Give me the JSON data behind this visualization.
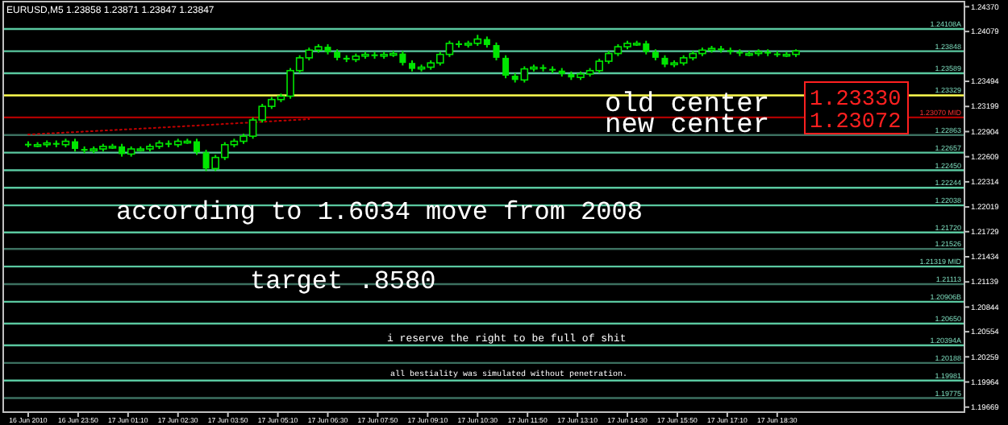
{
  "chart_data": {
    "type": "candlestick",
    "title": "EURUSD,M5  1.23858 1.23871 1.23847 1.23847",
    "color": "#00e600",
    "x": [
      "2010-06-16T22:30",
      "2010-06-16T22:45",
      "2010-06-16T23:00",
      "2010-06-16T23:15",
      "2010-06-16T23:30",
      "2010-06-16T23:45",
      "2010-06-17T00:00",
      "2010-06-17T00:15",
      "2010-06-17T00:30",
      "2010-06-17T00:45",
      "2010-06-17T01:00",
      "2010-06-17T01:15",
      "2010-06-17T01:30",
      "2010-06-17T01:45",
      "2010-06-17T02:00",
      "2010-06-17T02:15",
      "2010-06-17T02:30",
      "2010-06-17T02:45",
      "2010-06-17T03:00",
      "2010-06-17T03:15",
      "2010-06-17T03:30",
      "2010-06-17T03:45",
      "2010-06-17T04:00",
      "2010-06-17T04:15",
      "2010-06-17T04:30",
      "2010-06-17T04:45",
      "2010-06-17T05:00",
      "2010-06-17T05:15",
      "2010-06-17T05:30",
      "2010-06-17T05:45",
      "2010-06-17T06:00",
      "2010-06-17T06:15",
      "2010-06-17T06:30",
      "2010-06-17T06:45",
      "2010-06-17T07:00",
      "2010-06-17T07:15",
      "2010-06-17T07:30",
      "2010-06-17T07:45",
      "2010-06-17T08:00",
      "2010-06-17T08:15",
      "2010-06-17T08:30",
      "2010-06-17T08:45",
      "2010-06-17T09:00",
      "2010-06-17T09:15",
      "2010-06-17T09:30",
      "2010-06-17T09:45",
      "2010-06-17T10:00",
      "2010-06-17T10:15",
      "2010-06-17T10:30",
      "2010-06-17T10:45",
      "2010-06-17T11:00",
      "2010-06-17T11:15",
      "2010-06-17T11:30",
      "2010-06-17T11:45",
      "2010-06-17T12:00",
      "2010-06-17T12:15",
      "2010-06-17T12:30",
      "2010-06-17T12:45",
      "2010-06-17T13:00",
      "2010-06-17T13:15",
      "2010-06-17T13:30",
      "2010-06-17T13:45",
      "2010-06-17T14:00",
      "2010-06-17T14:15",
      "2010-06-17T14:30",
      "2010-06-17T14:45",
      "2010-06-17T15:00",
      "2010-06-17T15:15",
      "2010-06-17T15:30",
      "2010-06-17T15:45",
      "2010-06-17T16:00",
      "2010-06-17T16:15",
      "2010-06-17T16:30",
      "2010-06-17T16:45",
      "2010-06-17T17:00",
      "2010-06-17T17:15",
      "2010-06-17T17:30",
      "2010-06-17T17:45",
      "2010-06-17T18:00",
      "2010-06-17T18:15",
      "2010-06-17T18:30",
      "2010-06-17T18:45",
      "2010-06-17T19:00"
    ],
    "ohlc": [
      [
        1.2276,
        1.2279,
        1.2272,
        1.2275
      ],
      [
        1.2275,
        1.2278,
        1.2272,
        1.2275
      ],
      [
        1.2275,
        1.228,
        1.2272,
        1.2277
      ],
      [
        1.2277,
        1.228,
        1.2272,
        1.2275
      ],
      [
        1.2275,
        1.2282,
        1.2272,
        1.2279
      ],
      [
        1.2279,
        1.2282,
        1.2267,
        1.227
      ],
      [
        1.227,
        1.2273,
        1.2265,
        1.2268
      ],
      [
        1.2268,
        1.2273,
        1.2265,
        1.227
      ],
      [
        1.227,
        1.2276,
        1.2267,
        1.2273
      ],
      [
        1.2273,
        1.2276,
        1.227,
        1.2273
      ],
      [
        1.2273,
        1.2276,
        1.2261,
        1.2264
      ],
      [
        1.2264,
        1.2273,
        1.2261,
        1.227
      ],
      [
        1.227,
        1.2273,
        1.2267,
        1.227
      ],
      [
        1.227,
        1.2276,
        1.2267,
        1.2273
      ],
      [
        1.2273,
        1.228,
        1.227,
        1.2277
      ],
      [
        1.2277,
        1.228,
        1.2272,
        1.2275
      ],
      [
        1.2275,
        1.2282,
        1.2272,
        1.2279
      ],
      [
        1.2279,
        1.2282,
        1.2276,
        1.2279
      ],
      [
        1.2279,
        1.2282,
        1.2263,
        1.2266
      ],
      [
        1.2266,
        1.2269,
        1.2244,
        1.2247
      ],
      [
        1.2247,
        1.2263,
        1.2244,
        1.226
      ],
      [
        1.226,
        1.2278,
        1.2257,
        1.2275
      ],
      [
        1.2275,
        1.2282,
        1.2272,
        1.2279
      ],
      [
        1.2279,
        1.2288,
        1.2276,
        1.2285
      ],
      [
        1.2285,
        1.2307,
        1.2282,
        1.2304
      ],
      [
        1.2304,
        1.2323,
        1.2301,
        1.232
      ],
      [
        1.232,
        1.2331,
        1.2317,
        1.2328
      ],
      [
        1.2328,
        1.2335,
        1.2325,
        1.2332
      ],
      [
        1.2332,
        1.2365,
        1.2329,
        1.2362
      ],
      [
        1.2362,
        1.238,
        1.2359,
        1.2377
      ],
      [
        1.2377,
        1.2389,
        1.2374,
        1.2386
      ],
      [
        1.2386,
        1.2393,
        1.2383,
        1.239
      ],
      [
        1.239,
        1.2393,
        1.2381,
        1.2384
      ],
      [
        1.2384,
        1.2387,
        1.2374,
        1.2377
      ],
      [
        1.2377,
        1.238,
        1.2372,
        1.2375
      ],
      [
        1.2375,
        1.2382,
        1.2372,
        1.2379
      ],
      [
        1.2379,
        1.2384,
        1.2376,
        1.2381
      ],
      [
        1.2381,
        1.2384,
        1.2376,
        1.2379
      ],
      [
        1.2379,
        1.2384,
        1.2376,
        1.2381
      ],
      [
        1.2381,
        1.2385,
        1.2378,
        1.2382
      ],
      [
        1.2382,
        1.2385,
        1.2368,
        1.2371
      ],
      [
        1.2371,
        1.2374,
        1.2361,
        1.2364
      ],
      [
        1.2364,
        1.2369,
        1.2361,
        1.2366
      ],
      [
        1.2366,
        1.2374,
        1.2363,
        1.2371
      ],
      [
        1.2371,
        1.2384,
        1.2368,
        1.2381
      ],
      [
        1.2381,
        1.2397,
        1.2378,
        1.2394
      ],
      [
        1.2394,
        1.2397,
        1.2389,
        1.2392
      ],
      [
        1.2392,
        1.2397,
        1.2389,
        1.2394
      ],
      [
        1.2394,
        1.2404,
        1.2391,
        1.2399
      ],
      [
        1.2399,
        1.2402,
        1.2389,
        1.2392
      ],
      [
        1.2392,
        1.2395,
        1.2374,
        1.2377
      ],
      [
        1.2377,
        1.238,
        1.2353,
        1.2356
      ],
      [
        1.2356,
        1.2359,
        1.2348,
        1.2351
      ],
      [
        1.2351,
        1.2367,
        1.2348,
        1.2364
      ],
      [
        1.2364,
        1.2369,
        1.2361,
        1.2366
      ],
      [
        1.2366,
        1.2369,
        1.2361,
        1.2364
      ],
      [
        1.2364,
        1.2367,
        1.2359,
        1.2362
      ],
      [
        1.2362,
        1.2365,
        1.2355,
        1.2358
      ],
      [
        1.2358,
        1.2361,
        1.2351,
        1.2354
      ],
      [
        1.2354,
        1.2361,
        1.2351,
        1.2358
      ],
      [
        1.2358,
        1.2365,
        1.2355,
        1.2362
      ],
      [
        1.2362,
        1.2376,
        1.2359,
        1.2373
      ],
      [
        1.2373,
        1.2385,
        1.237,
        1.2382
      ],
      [
        1.2382,
        1.2393,
        1.2379,
        1.239
      ],
      [
        1.239,
        1.2397,
        1.2387,
        1.2394
      ],
      [
        1.2394,
        1.2397,
        1.2391,
        1.2394
      ],
      [
        1.2394,
        1.2397,
        1.2381,
        1.2384
      ],
      [
        1.2384,
        1.2387,
        1.2374,
        1.2377
      ],
      [
        1.2377,
        1.238,
        1.2366,
        1.2369
      ],
      [
        1.2369,
        1.2374,
        1.2366,
        1.2371
      ],
      [
        1.2371,
        1.238,
        1.2368,
        1.2377
      ],
      [
        1.2377,
        1.2385,
        1.2374,
        1.2382
      ],
      [
        1.2382,
        1.2389,
        1.2379,
        1.2386
      ],
      [
        1.2386,
        1.2391,
        1.2383,
        1.2388
      ],
      [
        1.2388,
        1.2391,
        1.2383,
        1.2386
      ],
      [
        1.2386,
        1.2389,
        1.2381,
        1.2384
      ],
      [
        1.2384,
        1.2387,
        1.2379,
        1.2382
      ],
      [
        1.2382,
        1.2385,
        1.2379,
        1.2382
      ],
      [
        1.2382,
        1.2387,
        1.2379,
        1.2384
      ],
      [
        1.2384,
        1.2387,
        1.2379,
        1.2382
      ],
      [
        1.2382,
        1.2385,
        1.2378,
        1.2381
      ],
      [
        1.2381,
        1.2384,
        1.2378,
        1.2381
      ],
      [
        1.2381,
        1.2387,
        1.2378,
        1.2385
      ]
    ],
    "series": [
      {
        "type": "line",
        "color": "#c00000",
        "line_style": "dotted",
        "x": [
          "2010-06-16T22:30",
          "2010-06-17T02:00",
          "2010-06-17T06:00"
        ],
        "values": [
          1.2287,
          1.2295,
          1.2305
        ]
      }
    ],
    "xlim": [
      "2010-06-16T21:50",
      "2010-06-17T23:30"
    ],
    "xticks": [
      {
        "value": "2010-06-16T22:30",
        "label": "16 Jun 2010"
      },
      {
        "value": "2010-06-16T23:50",
        "label": "16 Jun 23:50"
      },
      {
        "value": "2010-06-17T01:10",
        "label": "17 Jun 01:10"
      },
      {
        "value": "2010-06-17T02:30",
        "label": "17 Jun 02:30"
      },
      {
        "value": "2010-06-17T03:50",
        "label": "17 Jun 03:50"
      },
      {
        "value": "2010-06-17T05:10",
        "label": "17 Jun 05:10"
      },
      {
        "value": "2010-06-17T06:30",
        "label": "17 Jun 06:30"
      },
      {
        "value": "2010-06-17T07:50",
        "label": "17 Jun 07:50"
      },
      {
        "value": "2010-06-17T09:10",
        "label": "17 Jun 09:10"
      },
      {
        "value": "2010-06-17T10:30",
        "label": "17 Jun 10:30"
      },
      {
        "value": "2010-06-17T11:50",
        "label": "17 Jun 11:50"
      },
      {
        "value": "2010-06-17T13:10",
        "label": "17 Jun 13:10"
      },
      {
        "value": "2010-06-17T14:30",
        "label": "17 Jun 14:30"
      },
      {
        "value": "2010-06-17T15:50",
        "label": "17 Jun 15:50"
      },
      {
        "value": "2010-06-17T17:10",
        "label": "17 Jun 17:10"
      },
      {
        "value": "2010-06-17T18:30",
        "label": "17 Jun 18:30"
      }
    ],
    "ylim": [
      1.1961,
      1.2443
    ],
    "yticks": [
      {
        "value": 1.2437,
        "label": "1.24370"
      },
      {
        "value": 1.24079,
        "label": "1.24079"
      },
      {
        "value": 1.23494,
        "label": "1.23494"
      },
      {
        "value": 1.23199,
        "label": "1.23199"
      },
      {
        "value": 1.22904,
        "label": "1.22904"
      },
      {
        "value": 1.22609,
        "label": "1.22609"
      },
      {
        "value": 1.22314,
        "label": "1.22314"
      },
      {
        "value": 1.22019,
        "label": "1.22019"
      },
      {
        "value": 1.21729,
        "label": "1.21729"
      },
      {
        "value": 1.21434,
        "label": "1.21434"
      },
      {
        "value": 1.21139,
        "label": "1.21139"
      },
      {
        "value": 1.20844,
        "label": "1.20844"
      },
      {
        "value": 1.20554,
        "label": "1.20554"
      },
      {
        "value": 1.20259,
        "label": "1.20259"
      },
      {
        "value": 1.19964,
        "label": "1.19964"
      },
      {
        "value": 1.19669,
        "label": "1.19669"
      }
    ],
    "ref_lines": [
      {
        "axis": "y",
        "value": 1.24108,
        "label": "1.24108A",
        "color": "#5ac8a0"
      },
      {
        "axis": "y",
        "value": 1.23848,
        "label": "1.23848",
        "color": "#5ac8a0"
      },
      {
        "axis": "y",
        "value": 1.23589,
        "label": "1.23589",
        "color": "#5ac8a0"
      },
      {
        "axis": "y",
        "value": 1.23329,
        "label": "1.23329",
        "color": "#ffff50"
      },
      {
        "axis": "y",
        "value": 1.2307,
        "label": "1.23070 MID",
        "color": "#b00000"
      },
      {
        "axis": "y",
        "value": 1.22863,
        "label": "1.22863",
        "color": "#3c7060"
      },
      {
        "axis": "y",
        "value": 1.22657,
        "label": "1.22657",
        "color": "#5ac8a0"
      },
      {
        "axis": "y",
        "value": 1.2245,
        "label": "1.22450",
        "color": "#5ac8a0"
      },
      {
        "axis": "y",
        "value": 1.22244,
        "label": "1.22244",
        "color": "#5ac8a0"
      },
      {
        "axis": "y",
        "value": 1.22038,
        "label": "1.22038",
        "color": "#5ac8a0"
      },
      {
        "axis": "y",
        "value": 1.2172,
        "label": "1.21720",
        "color": "#5ac8a0"
      },
      {
        "axis": "y",
        "value": 1.21526,
        "label": "1.21526",
        "color": "#3c7060"
      },
      {
        "axis": "y",
        "value": 1.21319,
        "label": "1.21319 MID",
        "color": "#5ac8a0"
      },
      {
        "axis": "y",
        "value": 1.21113,
        "label": "1.21113",
        "color": "#3c7060"
      },
      {
        "axis": "y",
        "value": 1.20906,
        "label": "1.20906B",
        "color": "#5ac8a0"
      },
      {
        "axis": "y",
        "value": 1.2065,
        "label": "1.20650",
        "color": "#5ac8a0"
      },
      {
        "axis": "y",
        "value": 1.20394,
        "label": "1.20394A",
        "color": "#5ac8a0"
      },
      {
        "axis": "y",
        "value": 1.20188,
        "label": "1.20188",
        "color": "#3c7060"
      },
      {
        "axis": "y",
        "value": 1.19981,
        "label": "1.19981",
        "color": "#5ac8a0"
      },
      {
        "axis": "y",
        "value": 1.19775,
        "label": "1.19775",
        "color": "#3c7060"
      }
    ],
    "annotations": [
      "old center",
      "new center",
      "1.23330",
      "1.23072",
      "according to 1.6034 move from 2008",
      "target .8580",
      "i reserve the right to be full of shit",
      "all bestiality was simulated without penetration."
    ],
    "grid": false
  }
}
